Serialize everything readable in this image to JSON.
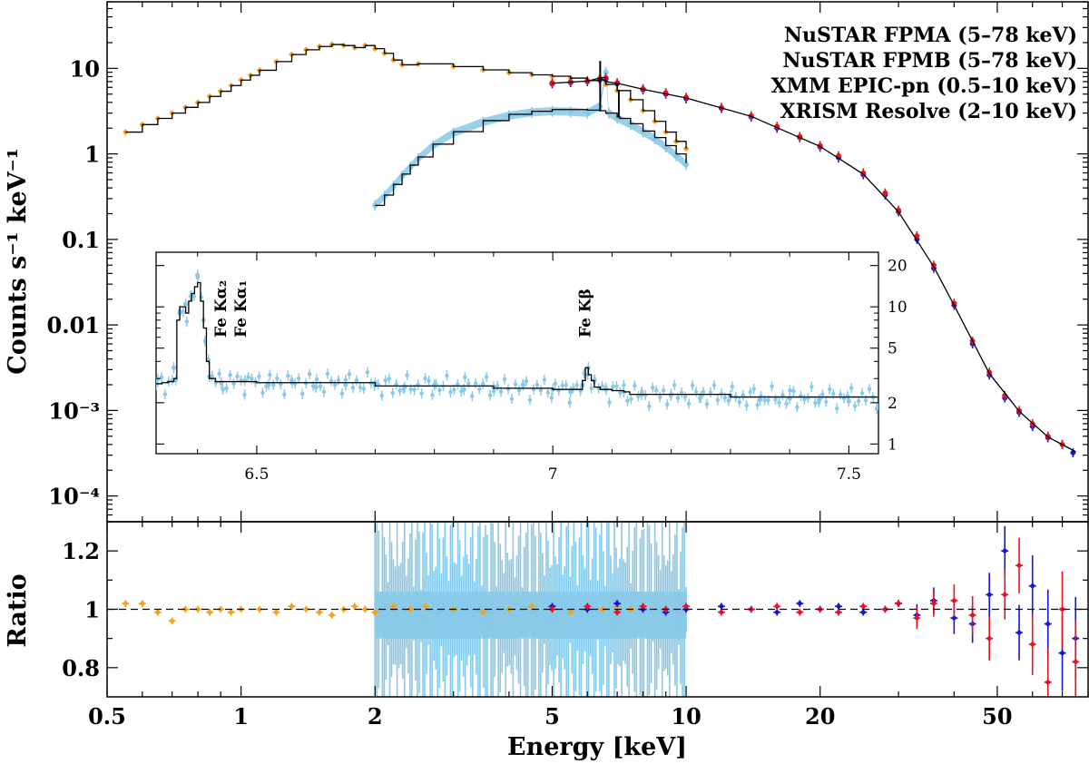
{
  "chart_data": [
    {
      "panel": "main",
      "type": "scatter",
      "xscale": "log",
      "yscale": "log",
      "xlim": [
        0.5,
        80
      ],
      "ylim": [
        5e-05,
        60
      ],
      "ylabel": "Counts s⁻¹ keV⁻¹",
      "yticks": [
        {
          "value": 0.0001,
          "label": "10⁻⁴"
        },
        {
          "value": 0.001,
          "label": "10⁻³"
        },
        {
          "value": 0.01,
          "label": "0.01"
        },
        {
          "value": 0.1,
          "label": "0.1"
        },
        {
          "value": 1,
          "label": "1"
        },
        {
          "value": 10,
          "label": "10"
        }
      ],
      "legend_position": "top-right",
      "series": [
        {
          "name": "NuSTAR FPMA (5–78 keV)",
          "color": "#e8121f",
          "x": [
            5,
            5.5,
            6,
            6.4,
            6.6,
            7,
            8,
            9,
            10,
            12,
            14,
            16,
            18,
            20,
            22,
            25,
            28,
            30,
            33,
            36,
            40,
            44,
            48,
            52,
            56,
            60,
            65,
            70
          ],
          "y": [
            6.8,
            7.0,
            7.2,
            7.5,
            7.8,
            6.8,
            5.8,
            5.2,
            4.6,
            3.5,
            2.8,
            2.1,
            1.6,
            1.25,
            0.95,
            0.6,
            0.35,
            0.22,
            0.11,
            0.05,
            0.018,
            0.0065,
            0.0028,
            0.0015,
            0.001,
            0.0007,
            0.0005,
            0.0004
          ]
        },
        {
          "name": "NuSTAR FPMB (5–78 keV)",
          "color": "#1414d6",
          "x": [
            5,
            5.5,
            6,
            6.4,
            6.6,
            7,
            8,
            9,
            10,
            12,
            14,
            16,
            18,
            20,
            22,
            25,
            28,
            30,
            33,
            36,
            40,
            44,
            48,
            52,
            56,
            60,
            65,
            70,
            74
          ],
          "y": [
            6.6,
            6.8,
            7.0,
            7.3,
            7.5,
            6.6,
            5.6,
            5.0,
            4.4,
            3.4,
            2.7,
            2.0,
            1.55,
            1.2,
            0.9,
            0.57,
            0.33,
            0.21,
            0.1,
            0.046,
            0.017,
            0.006,
            0.0026,
            0.0014,
            0.00095,
            0.00065,
            0.00048,
            0.0004,
            0.00032
          ]
        },
        {
          "name": "XMM EPIC-pn (0.5–10 keV)",
          "color": "#f5a11b",
          "x": [
            0.55,
            0.6,
            0.65,
            0.7,
            0.75,
            0.8,
            0.85,
            0.9,
            0.95,
            1.0,
            1.05,
            1.1,
            1.2,
            1.3,
            1.4,
            1.5,
            1.6,
            1.7,
            1.8,
            1.9,
            2.0,
            2.1,
            2.2,
            2.3,
            2.5,
            3,
            3.5,
            4,
            4.5,
            5,
            5.5,
            6,
            6.4,
            6.6,
            7,
            7.5,
            8,
            8.5,
            9,
            9.5,
            10
          ],
          "y": [
            1.8,
            2.2,
            2.6,
            3.0,
            3.5,
            4.0,
            4.7,
            5.4,
            6.3,
            7.3,
            8.3,
            9.5,
            12,
            14.5,
            16.5,
            18,
            19,
            18.5,
            17.5,
            18.5,
            17,
            15,
            12.5,
            11,
            11.3,
            10.5,
            9.6,
            8.9,
            8.4,
            8.1,
            7.7,
            7.2,
            7.8,
            6.5,
            5.5,
            4.3,
            3.2,
            2.4,
            1.8,
            1.4,
            1.15
          ]
        },
        {
          "name": "XRISM Resolve (2–10 keV)",
          "color": "#87c9e8",
          "x": [
            2.0,
            2.1,
            2.2,
            2.3,
            2.4,
            2.5,
            2.7,
            3.0,
            3.5,
            4.0,
            4.5,
            5.0,
            5.5,
            6.0,
            6.4,
            6.6,
            6.7,
            7.0,
            7.5,
            8.0,
            8.5,
            9.0,
            9.5,
            10.0
          ],
          "y": [
            0.25,
            0.32,
            0.42,
            0.55,
            0.7,
            0.88,
            1.25,
            1.75,
            2.35,
            2.8,
            3.05,
            3.15,
            3.1,
            3.0,
            3.6,
            9.0,
            3.0,
            2.6,
            2.2,
            1.8,
            1.5,
            1.2,
            0.95,
            0.75
          ]
        }
      ],
      "model": {
        "xmm_x": [
          0.55,
          0.6,
          0.65,
          0.7,
          0.75,
          0.8,
          0.85,
          0.9,
          0.95,
          1.0,
          1.05,
          1.1,
          1.2,
          1.3,
          1.4,
          1.5,
          1.6,
          1.7,
          1.8,
          1.9,
          2.0,
          2.1,
          2.2,
          2.3,
          2.5,
          3,
          3.5,
          4,
          4.5,
          5,
          5.5,
          6,
          6.4,
          6.6,
          7,
          7.5,
          8,
          8.5,
          9,
          9.5,
          10
        ],
        "xmm_y": [
          1.8,
          2.2,
          2.6,
          3.0,
          3.5,
          4.0,
          4.7,
          5.4,
          6.3,
          7.3,
          8.3,
          9.5,
          12,
          14.5,
          16.5,
          18,
          19,
          18.5,
          17.5,
          18.5,
          17,
          15,
          12.5,
          11,
          11.3,
          10.5,
          9.6,
          8.9,
          8.4,
          8.1,
          7.7,
          7.2,
          7.8,
          6.5,
          5.5,
          4.3,
          3.2,
          2.4,
          1.8,
          1.4,
          1.15
        ],
        "xrism_x": [
          2.0,
          2.1,
          2.2,
          2.3,
          2.4,
          2.5,
          2.7,
          3.0,
          3.5,
          4.0,
          4.5,
          5.0,
          5.5,
          6.0,
          6.38,
          6.4,
          6.42,
          6.6,
          7.0,
          7.05,
          7.07,
          7.1,
          7.5,
          8.0,
          8.5,
          9.0,
          9.5,
          10.0
        ],
        "xrism_y": [
          0.25,
          0.33,
          0.44,
          0.58,
          0.74,
          0.92,
          1.3,
          1.82,
          2.45,
          2.9,
          3.15,
          3.3,
          3.3,
          3.25,
          3.2,
          12,
          3.2,
          3.0,
          2.7,
          5.5,
          2.7,
          2.6,
          2.25,
          1.85,
          1.55,
          1.25,
          1.0,
          0.78
        ],
        "nustar_x": [
          5,
          6,
          6.4,
          6.6,
          7,
          8,
          10,
          14,
          20,
          25,
          30,
          36,
          40,
          48,
          56,
          65,
          75
        ],
        "nustar_y": [
          6.7,
          7.1,
          7.7,
          7.0,
          6.7,
          5.7,
          4.5,
          2.75,
          1.22,
          0.58,
          0.21,
          0.048,
          0.017,
          0.0027,
          0.00098,
          0.00049,
          0.00033
        ]
      }
    },
    {
      "panel": "ratio",
      "type": "scatter",
      "xscale": "log",
      "xlim": [
        0.5,
        80
      ],
      "ylim": [
        0.7,
        1.3
      ],
      "xlabel": "Energy [keV]",
      "ylabel": "Ratio",
      "xticks": [
        {
          "value": 0.5,
          "label": "0.5"
        },
        {
          "value": 1,
          "label": "1"
        },
        {
          "value": 2,
          "label": "2"
        },
        {
          "value": 5,
          "label": "5"
        },
        {
          "value": 10,
          "label": "10"
        },
        {
          "value": 20,
          "label": "20"
        },
        {
          "value": 50,
          "label": "50"
        }
      ],
      "yticks": [
        {
          "value": 0.8,
          "label": "0.8"
        },
        {
          "value": 1,
          "label": "1"
        },
        {
          "value": 1.2,
          "label": "1.2"
        }
      ],
      "reference_line": 1,
      "series": [
        {
          "name": "XMM EPIC-pn",
          "color": "#f5a11b",
          "x": [
            0.55,
            0.6,
            0.65,
            0.7,
            0.75,
            0.8,
            0.85,
            0.9,
            0.95,
            1.0,
            1.1,
            1.2,
            1.3,
            1.4,
            1.5,
            1.6,
            1.7,
            1.8,
            1.9,
            2.0,
            2.2,
            2.4,
            2.6,
            3,
            3.5,
            4,
            4.5,
            5,
            5.5,
            6,
            6.5,
            7,
            7.5,
            8,
            9,
            10
          ],
          "y": [
            1.02,
            1.02,
            0.99,
            0.96,
            1.0,
            1.0,
            0.99,
            1.0,
            0.99,
            1.0,
            1.0,
            0.99,
            1.01,
            1.0,
            0.99,
            0.98,
            1.0,
            1.01,
            1.0,
            0.99,
            1.01,
            1.0,
            1.01,
            1.0,
            0.99,
            1.0,
            1.01,
            1.0,
            0.99,
            1.0,
            1.0,
            1.01,
            1.0,
            1.0,
            1.0,
            1.0
          ]
        },
        {
          "name": "XRISM Resolve",
          "color": "#87c9e8",
          "band": [
            2,
            10
          ],
          "spread": 0.15
        },
        {
          "name": "NuSTAR FPMB",
          "color": "#1414d6",
          "x": [
            5,
            6,
            7,
            8,
            9,
            10,
            12,
            14,
            16,
            18,
            20,
            22,
            25,
            28,
            30,
            33,
            36,
            40,
            44,
            48,
            52,
            56,
            60,
            65,
            70,
            75
          ],
          "y": [
            1.01,
            1.0,
            1.02,
            1.0,
            0.99,
            1.0,
            1.01,
            1.0,
            0.99,
            1.02,
            1.0,
            1.01,
            0.99,
            1.0,
            1.02,
            0.98,
            1.03,
            0.97,
            0.95,
            1.05,
            1.2,
            0.92,
            1.08,
            0.95,
            0.85,
            0.9
          ]
        },
        {
          "name": "NuSTAR FPMA",
          "color": "#e8121f",
          "x": [
            5,
            6,
            7,
            8,
            9,
            10,
            12,
            14,
            16,
            18,
            20,
            22,
            25,
            28,
            30,
            33,
            36,
            40,
            44,
            48,
            52,
            56,
            60,
            65,
            70,
            75
          ],
          "y": [
            1.0,
            1.01,
            0.99,
            1.01,
            1.0,
            1.01,
            0.99,
            1.0,
            1.01,
            0.99,
            1.0,
            0.99,
            1.01,
            1.0,
            1.02,
            0.97,
            1.02,
            1.03,
            0.98,
            0.9,
            1.05,
            1.15,
            0.88,
            0.75,
            1.0,
            0.82
          ]
        }
      ]
    },
    {
      "panel": "inset",
      "type": "scatter",
      "yscale": "log",
      "xlim": [
        6.33,
        7.55
      ],
      "ylim": [
        0.85,
        25
      ],
      "xticks": [
        {
          "value": 6.5,
          "label": "6.5"
        },
        {
          "value": 7,
          "label": "7"
        },
        {
          "value": 7.5,
          "label": "7.5"
        }
      ],
      "yticks": [
        {
          "value": 1,
          "label": "1"
        },
        {
          "value": 2,
          "label": "2"
        },
        {
          "value": 5,
          "label": "5"
        },
        {
          "value": 10,
          "label": "10"
        },
        {
          "value": 20,
          "label": "20"
        }
      ],
      "line_labels": [
        {
          "text": "Fe Kα₂",
          "x": 6.39
        },
        {
          "text": "Fe Kα₁",
          "x": 6.41
        },
        {
          "text": "Fe Kβ",
          "x": 7.06
        }
      ],
      "series": [
        {
          "name": "XRISM Resolve",
          "color": "#87c9e8",
          "x": [
            6.33,
            6.36,
            6.37,
            6.38,
            6.39,
            6.4,
            6.41,
            6.42,
            6.44,
            6.48,
            6.52,
            6.56,
            6.6,
            6.65,
            6.7,
            6.75,
            6.8,
            6.85,
            6.9,
            6.95,
            7.0,
            7.03,
            7.05,
            7.06,
            7.07,
            7.09,
            7.12,
            7.15,
            7.2,
            7.25,
            7.3,
            7.35,
            7.4,
            7.45,
            7.5,
            7.55
          ],
          "y": [
            2.7,
            3.6,
            9.0,
            10.5,
            12.0,
            17.0,
            8.0,
            3.1,
            2.8,
            2.9,
            2.7,
            2.8,
            2.6,
            2.7,
            2.8,
            2.6,
            2.7,
            2.5,
            2.6,
            2.7,
            2.5,
            2.4,
            2.7,
            3.6,
            2.9,
            2.5,
            2.4,
            2.3,
            2.3,
            2.2,
            2.25,
            2.1,
            2.15,
            2.1,
            2.05,
            1.95
          ]
        }
      ],
      "model": {
        "x": [
          6.33,
          6.34,
          6.35,
          6.36,
          6.365,
          6.37,
          6.38,
          6.385,
          6.39,
          6.395,
          6.4,
          6.405,
          6.41,
          6.415,
          6.42,
          6.43,
          6.5,
          6.7,
          6.9,
          7.0,
          7.04,
          7.05,
          7.055,
          7.06,
          7.065,
          7.07,
          7.08,
          7.1,
          7.12,
          7.13,
          7.3,
          7.55
        ],
        "y": [
          2.75,
          2.8,
          2.85,
          3.0,
          8.0,
          10.0,
          9.0,
          11.0,
          12.5,
          14.0,
          15.0,
          11.0,
          7.0,
          4.0,
          3.0,
          2.85,
          2.8,
          2.65,
          2.55,
          2.5,
          2.5,
          2.9,
          3.6,
          3.2,
          2.9,
          2.6,
          2.5,
          2.45,
          2.4,
          2.3,
          2.2,
          2.0
        ]
      }
    }
  ]
}
